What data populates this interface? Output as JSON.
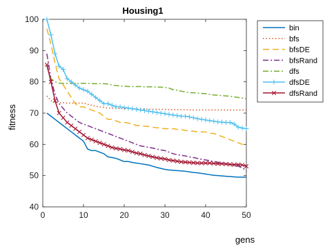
{
  "chart_data": {
    "type": "line",
    "title": "Housing1",
    "xlabel": "gens",
    "ylabel": "fitness",
    "xlim": [
      0,
      50
    ],
    "ylim": [
      40,
      100
    ],
    "xticks": [
      0,
      10,
      20,
      30,
      40,
      50
    ],
    "yticks": [
      40,
      50,
      60,
      70,
      80,
      90,
      100
    ],
    "grid": false,
    "legend_position": "outside-right",
    "x": [
      1,
      2,
      3,
      4,
      5,
      6,
      7,
      8,
      9,
      10,
      11,
      12,
      13,
      14,
      15,
      16,
      17,
      18,
      19,
      20,
      21,
      22,
      23,
      24,
      25,
      26,
      27,
      28,
      29,
      30,
      31,
      32,
      33,
      34,
      35,
      36,
      37,
      38,
      39,
      40,
      41,
      42,
      43,
      44,
      45,
      46,
      47,
      48,
      49,
      50
    ],
    "series": [
      {
        "name": "bin",
        "color": "#0072BD",
        "dash": "solid",
        "marker": "none",
        "values": [
          70,
          69,
          68,
          67,
          66,
          65,
          64,
          63,
          62,
          61,
          58.5,
          58,
          58,
          57.5,
          57,
          56,
          55.8,
          55.5,
          55,
          54.5,
          54.5,
          54.2,
          54,
          53.8,
          53.6,
          53.4,
          53,
          52.6,
          52.3,
          52,
          51.8,
          51.7,
          51.6,
          51.5,
          51.4,
          51.2,
          51,
          50.9,
          50.7,
          50.5,
          50.3,
          50.1,
          50,
          49.9,
          49.8,
          49.7,
          49.6,
          49.5,
          49.5,
          49.5
        ]
      },
      {
        "name": "bfs",
        "color": "#D95319",
        "dash": "dot",
        "marker": "none",
        "values": [
          75.5,
          74,
          73.5,
          73.3,
          73.3,
          73.2,
          73.2,
          73.2,
          73.2,
          73.2,
          72.8,
          72.5,
          72.2,
          72,
          71.8,
          71.6,
          71.6,
          71.5,
          71.5,
          71.4,
          71.4,
          71.4,
          71.3,
          71.3,
          71.3,
          71.2,
          71.2,
          71.2,
          71.2,
          71.2,
          71.1,
          71.1,
          71.1,
          71.1,
          71.1,
          71,
          71,
          71,
          71,
          71,
          71,
          71,
          71,
          71,
          71,
          71,
          71,
          71,
          71,
          71
        ]
      },
      {
        "name": "bfsDE",
        "color": "#EDB120",
        "dash": "dash",
        "marker": "none",
        "values": [
          97,
          92,
          86,
          81,
          79,
          77,
          75,
          73,
          72,
          72,
          71.5,
          71,
          70.5,
          70,
          69,
          68,
          68,
          67.5,
          67,
          67,
          66.8,
          66.5,
          66,
          66,
          65.8,
          65.7,
          65.5,
          65.3,
          65.2,
          65,
          65,
          65,
          64.8,
          64.7,
          64.5,
          64.3,
          64.2,
          64,
          64,
          64,
          63.5,
          63.5,
          63,
          62.5,
          62,
          61.5,
          61,
          60.5,
          60,
          59.8
        ]
      },
      {
        "name": "bfsRand",
        "color": "#7E2F8E",
        "dash": "dashdot",
        "marker": "none",
        "values": [
          89,
          81,
          76,
          73,
          71.5,
          70,
          69,
          68,
          67,
          66.5,
          66,
          65.5,
          65,
          64.5,
          64,
          63.5,
          63,
          62.5,
          62,
          61.5,
          61,
          60.5,
          60,
          59.5,
          59.3,
          59,
          58.8,
          58.5,
          58.2,
          58,
          57.5,
          57,
          56.7,
          56.5,
          56.3,
          56,
          55.8,
          55.5,
          55.2,
          55,
          54.8,
          54.5,
          54.3,
          54,
          53.8,
          53.5,
          53.2,
          53,
          52.5,
          51.5
        ]
      },
      {
        "name": "dfs",
        "color": "#77AC30",
        "dash": "dashdot",
        "marker": "none",
        "values": [
          85,
          81,
          80,
          79.6,
          79.5,
          79.5,
          79.5,
          79.5,
          79.5,
          79.5,
          79.5,
          79.4,
          79.4,
          79.4,
          79.4,
          79.3,
          79,
          78.8,
          78.7,
          78.6,
          78.5,
          78.5,
          78.5,
          78.5,
          78.4,
          78.4,
          78.4,
          78.3,
          78.3,
          78.2,
          78,
          77.5,
          77.3,
          77,
          76.8,
          76.5,
          76.5,
          76.4,
          76.3,
          76.2,
          76,
          75.8,
          75.7,
          75.6,
          75.5,
          75.4,
          75.2,
          75,
          74.8,
          74.6
        ]
      },
      {
        "name": "dfsDE",
        "color": "#4DBEEE",
        "dash": "solid",
        "marker": "plus",
        "values": [
          100,
          95,
          89,
          85,
          84,
          81,
          80,
          79,
          78,
          77.5,
          77,
          76,
          75,
          74,
          73,
          73,
          72.5,
          72,
          72,
          71.8,
          71.6,
          71.4,
          71.2,
          71,
          70.8,
          70.6,
          70.4,
          70.2,
          70,
          69.8,
          69.6,
          69.4,
          69.2,
          69,
          69,
          68.8,
          68.5,
          68.2,
          68,
          67.8,
          67.6,
          67.4,
          67.2,
          67.1,
          67,
          67,
          66.5,
          65.5,
          65.2,
          65
        ]
      },
      {
        "name": "dfsRand",
        "color": "#A2142F",
        "dash": "solid",
        "marker": "x",
        "values": [
          85.5,
          80,
          74,
          70,
          68.5,
          67,
          66,
          65,
          64,
          63,
          62,
          61.5,
          61,
          60.5,
          60,
          59.5,
          59,
          58.7,
          58.5,
          58.2,
          58,
          57.6,
          57.2,
          57,
          56.6,
          56.3,
          56,
          55.7,
          55.5,
          55.3,
          55,
          54.8,
          54.6,
          54.4,
          54.3,
          54.2,
          54.1,
          54,
          54,
          54,
          54,
          53.9,
          53.8,
          53.8,
          53.7,
          53.6,
          53.5,
          53.5,
          53.4,
          53
        ]
      }
    ]
  }
}
